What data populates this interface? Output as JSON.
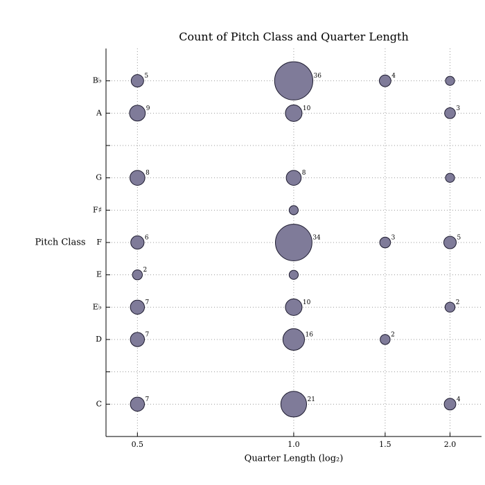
{
  "chart_data": {
    "type": "bubble",
    "title": "Count of Pitch Class and Quarter Length",
    "x_label": "Quarter Length (log₂)",
    "y_label": "Pitch Class",
    "categories": [
      "C",
      null,
      "D",
      "E♭",
      "E",
      "F",
      "F♯",
      "G",
      null,
      "A",
      "B♭"
    ],
    "x": [
      0.5,
      1.0,
      1.5,
      2.0,
      0.5,
      1.0,
      2.0,
      0.5,
      1.0,
      2.0,
      1.0,
      0.5,
      1.0,
      1.5,
      2.0,
      0.5,
      1.0,
      0.5,
      1.0,
      2.0,
      0.5,
      1.0,
      1.5,
      0.5,
      1.0,
      2.0
    ],
    "y": [
      "B♭",
      "B♭",
      "B♭",
      "B♭",
      "A",
      "A",
      "A",
      "G",
      "G",
      "G",
      "F♯",
      "F",
      "F",
      "F",
      "F",
      "E",
      "E",
      "E♭",
      "E♭",
      "E♭",
      "D",
      "D",
      "D",
      "C",
      "C",
      "C"
    ],
    "sizes": [
      5,
      36,
      4,
      1,
      9,
      10,
      3,
      8,
      8,
      1,
      1,
      6,
      34,
      3,
      5,
      2,
      1,
      7,
      10,
      2,
      7,
      16,
      2,
      7,
      21,
      4
    ],
    "value_labels": [
      "5",
      "36",
      "4",
      null,
      "9",
      "10",
      "3",
      "8",
      "8",
      null,
      null,
      "6",
      "34",
      "3",
      "5",
      "2",
      null,
      "7",
      "10",
      "2",
      "7",
      "16",
      "2",
      "7",
      "21",
      "4"
    ],
    "color": "#7f7b99",
    "edge_color": "#1c1a2e",
    "xscale": "log2",
    "xlim": [
      0.435,
      2.3
    ],
    "xticks": [
      0.5,
      {
        "value": 1.0,
        "label": "1.0"
      },
      1.5,
      {
        "value": 2.0,
        "label": "2.0"
      }
    ],
    "grid": true
  }
}
